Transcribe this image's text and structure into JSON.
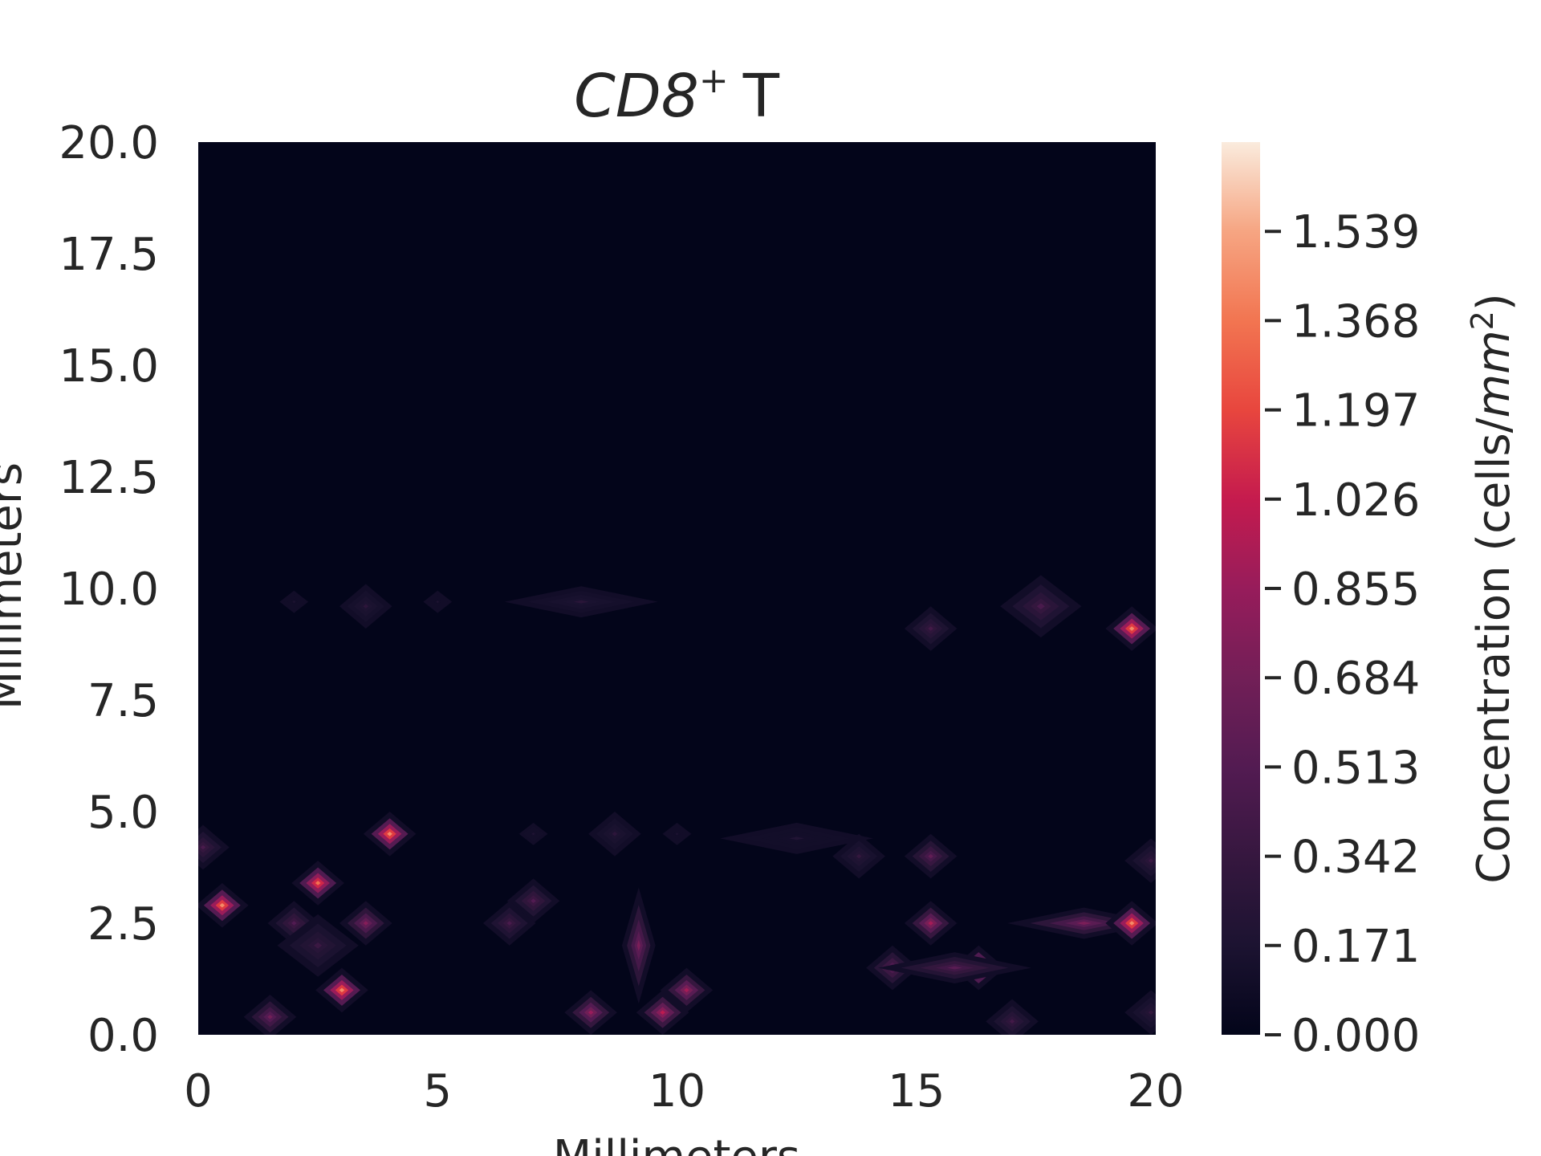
{
  "chart_data": {
    "type": "heatmap",
    "title": "CD8⁺ T",
    "title_parts": {
      "main": "CD8",
      "superscript": "+",
      "suffix": "T"
    },
    "xlabel": "Millimeters",
    "ylabel": "Millimeters",
    "xlim": [
      0,
      20
    ],
    "ylim": [
      0,
      20
    ],
    "x_ticks": [
      "0",
      "5",
      "10",
      "15",
      "20"
    ],
    "y_ticks": [
      "0.0",
      "2.5",
      "5.0",
      "7.5",
      "10.0",
      "12.5",
      "15.0",
      "17.5",
      "20.0"
    ],
    "colorbar": {
      "label": "Concentration (cells/mm²)",
      "label_parts": {
        "pre": "Concentration (cells/",
        "unit": "mm",
        "sup": "2",
        "post": ")"
      },
      "range": [
        0,
        1.71
      ],
      "ticks": [
        "0.000",
        "0.171",
        "0.342",
        "0.513",
        "0.684",
        "0.855",
        "1.026",
        "1.197",
        "1.368",
        "1.539"
      ],
      "colormap": "rocket"
    },
    "background_color": "#03051a",
    "grid": false,
    "hotspots": [
      {
        "x": 0.5,
        "y": 2.9,
        "value": 1.5,
        "size": "small"
      },
      {
        "x": 2.5,
        "y": 3.4,
        "value": 1.4,
        "size": "small"
      },
      {
        "x": 3.0,
        "y": 1.0,
        "value": 1.5,
        "size": "small"
      },
      {
        "x": 4.0,
        "y": 4.5,
        "value": 1.5,
        "size": "small"
      },
      {
        "x": 3.5,
        "y": 2.5,
        "value": 0.75,
        "size": "small"
      },
      {
        "x": 2.0,
        "y": 2.5,
        "value": 0.45,
        "size": "small"
      },
      {
        "x": 1.5,
        "y": 0.4,
        "value": 0.65,
        "size": "small"
      },
      {
        "x": 0.1,
        "y": 4.2,
        "value": 0.4,
        "size": "small"
      },
      {
        "x": 2.5,
        "y": 2.0,
        "value": 0.3,
        "size": "medium"
      },
      {
        "x": 3.5,
        "y": 9.6,
        "value": 0.2,
        "size": "small"
      },
      {
        "x": 2.0,
        "y": 9.7,
        "value": 0.1,
        "size": "tiny"
      },
      {
        "x": 5.0,
        "y": 9.7,
        "value": 0.1,
        "size": "tiny"
      },
      {
        "x": 8.0,
        "y": 9.7,
        "value": 0.18,
        "size": "wide"
      },
      {
        "x": 7.0,
        "y": 3.0,
        "value": 0.45,
        "size": "small"
      },
      {
        "x": 6.5,
        "y": 2.5,
        "value": 0.4,
        "size": "small"
      },
      {
        "x": 7.0,
        "y": 4.5,
        "value": 0.12,
        "size": "tiny"
      },
      {
        "x": 8.7,
        "y": 4.5,
        "value": 0.2,
        "size": "small"
      },
      {
        "x": 10.0,
        "y": 4.5,
        "value": 0.1,
        "size": "tiny"
      },
      {
        "x": 8.2,
        "y": 0.5,
        "value": 0.85,
        "size": "small"
      },
      {
        "x": 9.2,
        "y": 2.0,
        "value": 0.7,
        "size": "tall"
      },
      {
        "x": 9.7,
        "y": 0.5,
        "value": 1.0,
        "size": "small"
      },
      {
        "x": 10.2,
        "y": 1.0,
        "value": 0.9,
        "size": "small"
      },
      {
        "x": 12.5,
        "y": 4.4,
        "value": 0.12,
        "size": "wide"
      },
      {
        "x": 13.8,
        "y": 4.0,
        "value": 0.25,
        "size": "small"
      },
      {
        "x": 15.3,
        "y": 4.0,
        "value": 0.55,
        "size": "small"
      },
      {
        "x": 15.3,
        "y": 2.5,
        "value": 0.9,
        "size": "small"
      },
      {
        "x": 14.5,
        "y": 1.5,
        "value": 0.6,
        "size": "small"
      },
      {
        "x": 16.3,
        "y": 1.5,
        "value": 1.4,
        "size": "small"
      },
      {
        "x": 15.8,
        "y": 1.5,
        "value": 0.5,
        "size": "wide"
      },
      {
        "x": 17.0,
        "y": 0.3,
        "value": 0.35,
        "size": "small"
      },
      {
        "x": 18.5,
        "y": 2.5,
        "value": 0.7,
        "size": "wide"
      },
      {
        "x": 19.5,
        "y": 2.5,
        "value": 1.5,
        "size": "small"
      },
      {
        "x": 19.9,
        "y": 3.9,
        "value": 0.3,
        "size": "small"
      },
      {
        "x": 19.9,
        "y": 0.5,
        "value": 0.25,
        "size": "small"
      },
      {
        "x": 15.3,
        "y": 9.1,
        "value": 0.35,
        "size": "small"
      },
      {
        "x": 17.6,
        "y": 9.6,
        "value": 0.4,
        "size": "medium"
      },
      {
        "x": 19.5,
        "y": 9.1,
        "value": 1.5,
        "size": "small"
      }
    ]
  }
}
